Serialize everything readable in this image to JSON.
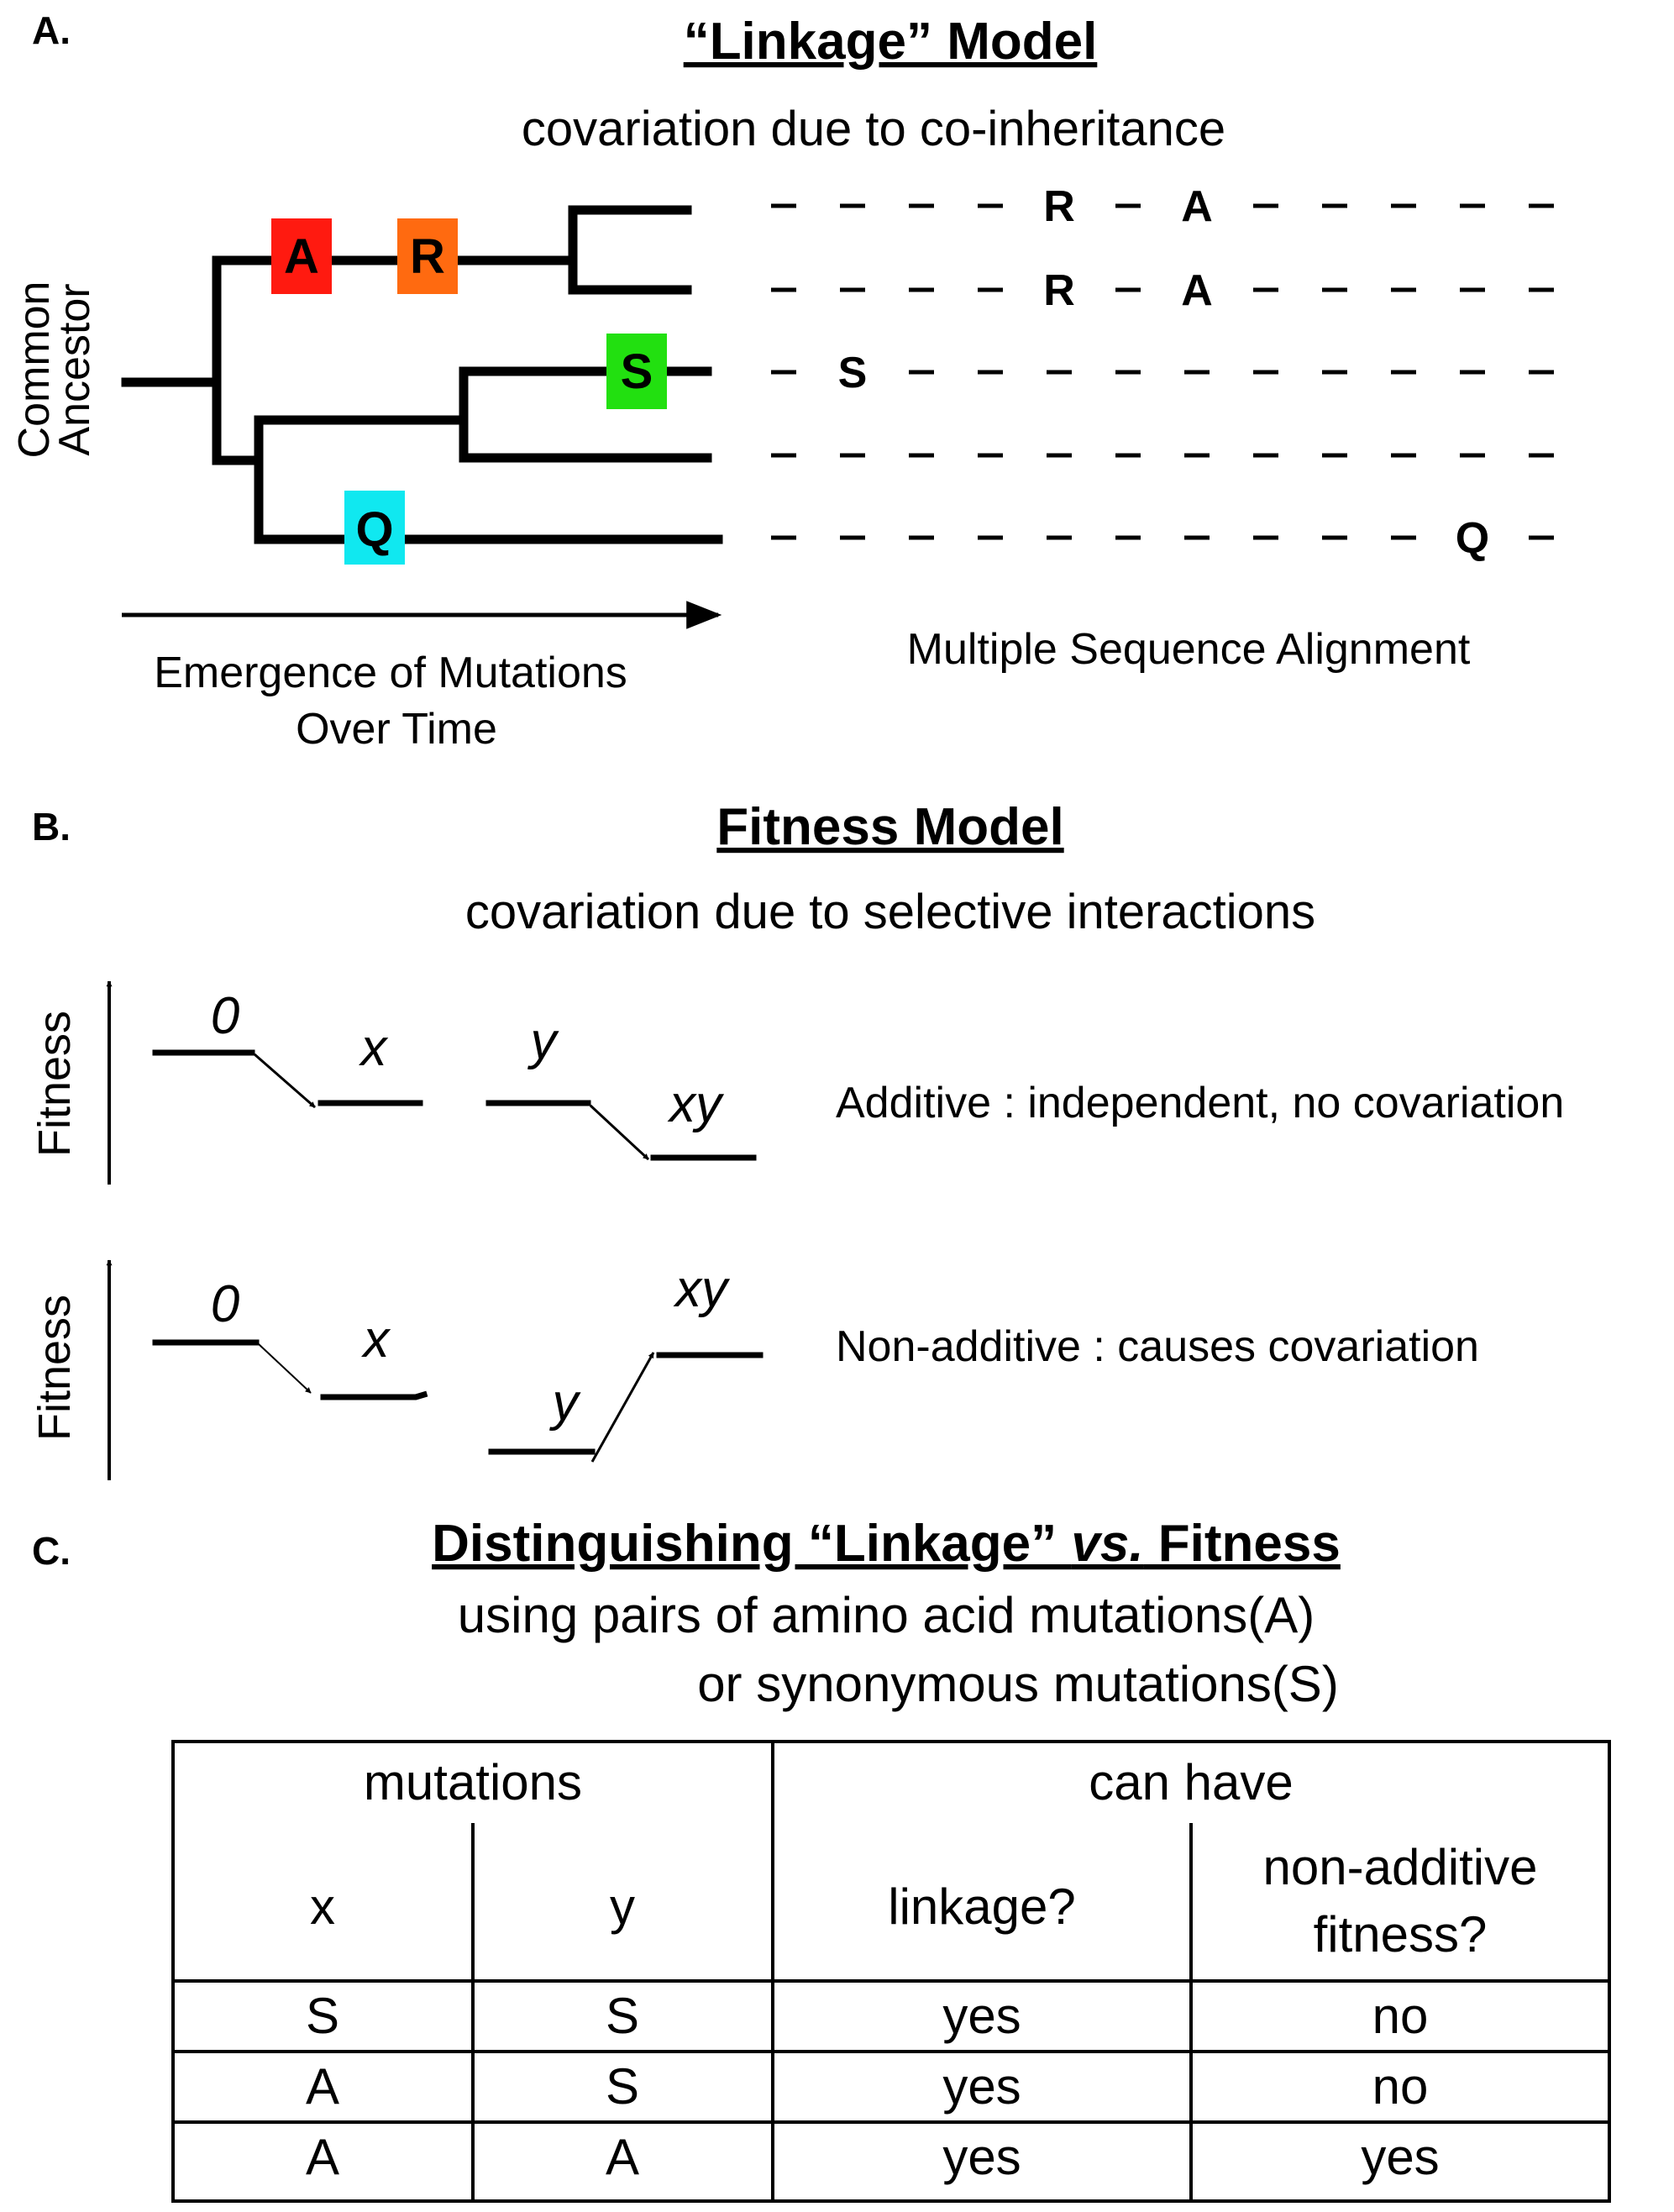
{
  "panel_a": {
    "letter": "A.",
    "title": "“Linkage” Model",
    "subtitle": "covariation due to co-inheritance",
    "root_label_line1": "Common",
    "root_label_line2": "Ancestor",
    "mutations": [
      {
        "letter": "A",
        "color": "#ff1a10"
      },
      {
        "letter": "R",
        "color": "#ff6a10"
      },
      {
        "letter": "S",
        "color": "#22e010"
      },
      {
        "letter": "Q",
        "color": "#10e8f0"
      }
    ],
    "time_label_line1": "Emergence of Mutations",
    "time_label_line2": "Over Time",
    "alignment_label": "Multiple Sequence Alignment",
    "alignment_rows": [
      [
        {
          "col": 4,
          "letter": "R"
        },
        {
          "col": 6,
          "letter": "A"
        }
      ],
      [
        {
          "col": 4,
          "letter": "R"
        },
        {
          "col": 6,
          "letter": "A"
        }
      ],
      [
        {
          "col": 1,
          "letter": "S"
        }
      ],
      [],
      [
        {
          "col": 10,
          "letter": "Q"
        }
      ]
    ]
  },
  "panel_b": {
    "letter": "B.",
    "title": "Fitness Model",
    "subtitle": "covariation due to selective interactions",
    "axis_label": "Fitness",
    "additive": {
      "labels": {
        "zero": "0",
        "x": "x",
        "y": "y",
        "xy": "xy"
      },
      "description": "Additive : independent, no covariation"
    },
    "non_additive": {
      "labels": {
        "zero": "0",
        "x": "x",
        "y": "y",
        "xy": "xy"
      },
      "description": "Non-additive : causes covariation"
    }
  },
  "panel_c": {
    "letter": "C.",
    "title_part1": "Distinguishing “Linkage” ",
    "title_part2": "vs.",
    "title_part3": " Fitness",
    "subtitle_line1": "using pairs of amino acid mutations(A)",
    "subtitle_line2": "or synonymous mutations(S)",
    "table": {
      "group_headers": [
        "mutations",
        "can have"
      ],
      "col_headers": [
        "x",
        "y",
        "linkage?",
        "non-additive",
        "fitness?"
      ],
      "rows": [
        [
          "S",
          "S",
          "yes",
          "no"
        ],
        [
          "A",
          "S",
          "yes",
          "no"
        ],
        [
          "A",
          "A",
          "yes",
          "yes"
        ]
      ]
    }
  }
}
